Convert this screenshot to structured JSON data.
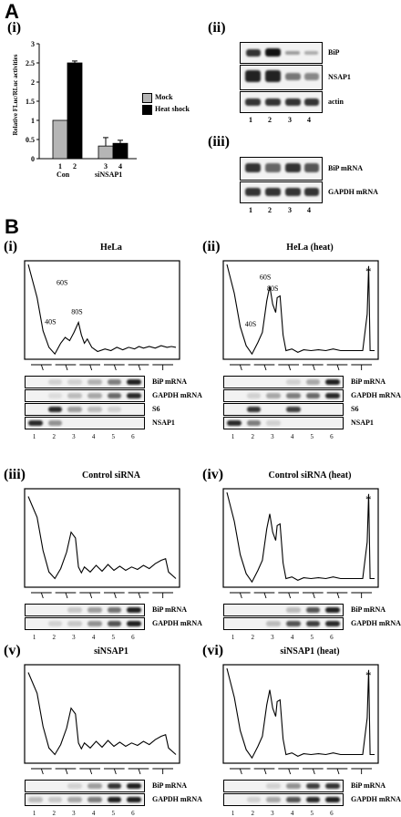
{
  "panels": {
    "A": "A",
    "B": "B"
  },
  "A": {
    "i": {
      "sub": "(i)",
      "chart_data": {
        "type": "bar",
        "ylabel": "Relative FLuc/RLuc activities",
        "ylim": [
          0,
          3
        ],
        "yticks": [
          "0",
          "0.5",
          "1",
          "1.5",
          "2",
          "2.5",
          "3"
        ],
        "groups": [
          "Con",
          "siNSAP1"
        ],
        "lanes": [
          "1",
          "2",
          "3",
          "4"
        ],
        "series": [
          {
            "name": "Mock",
            "color": "#b5b5b5",
            "values": [
              1.0,
              0.33
            ]
          },
          {
            "name": "Heat shock",
            "color": "#000000",
            "values": [
              2.5,
              0.4
            ]
          }
        ],
        "errors": [
          [
            0,
            0.05
          ],
          [
            0.22,
            0.08
          ]
        ]
      }
    },
    "ii": {
      "sub": "(ii)",
      "rows": [
        "BiP",
        "NSAP1",
        "actin"
      ],
      "lanes": [
        "1",
        "2",
        "3",
        "4"
      ]
    },
    "iii": {
      "sub": "(iii)",
      "rows": [
        "BiP mRNA",
        "GAPDH mRNA"
      ],
      "lanes": [
        "1",
        "2",
        "3",
        "4"
      ]
    }
  },
  "B": {
    "fractions": [
      "1",
      "2",
      "3",
      "4",
      "5",
      "6"
    ],
    "i": {
      "sub": "(i)",
      "title": "HeLa",
      "peaks": [
        "40S",
        "60S",
        "80S"
      ],
      "rows": [
        "BiP mRNA",
        "GAPDH mRNA",
        "S6",
        "NSAP1"
      ]
    },
    "ii": {
      "sub": "(ii)",
      "title": "HeLa (heat)",
      "peaks": [
        "40S",
        "60S",
        "80S"
      ],
      "star": "*",
      "rows": [
        "BiP mRNA",
        "GAPDH mRNA",
        "S6",
        "NSAP1"
      ]
    },
    "iii": {
      "sub": "(iii)",
      "title": "Control siRNA",
      "rows": [
        "BiP mRNA",
        "GAPDH mRNA"
      ]
    },
    "iv": {
      "sub": "(iv)",
      "title": "Control siRNA (heat)",
      "star": "*",
      "rows": [
        "BiP mRNA",
        "GAPDH mRNA"
      ]
    },
    "v": {
      "sub": "(v)",
      "title": "siNSAP1",
      "rows": [
        "BiP mRNA",
        "GAPDH mRNA"
      ]
    },
    "vi": {
      "sub": "(vi)",
      "title": "siNSAP1 (heat)",
      "star": "*",
      "rows": [
        "BiP mRNA",
        "GAPDH mRNA"
      ]
    }
  }
}
